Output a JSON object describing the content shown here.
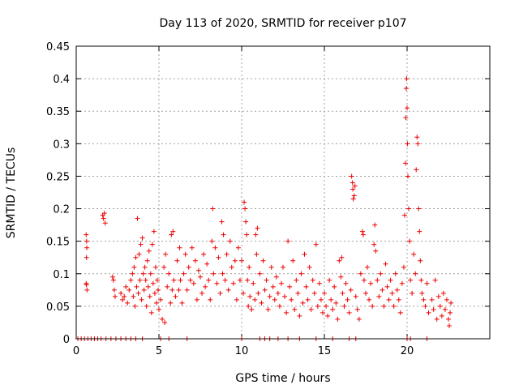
{
  "chart_data": {
    "type": "scatter",
    "title": "Day 113 of 2020, SRMTID for receiver p107",
    "xlabel": "GPS time / hours",
    "ylabel": "SRMTID / TECUs",
    "xlim": [
      0,
      25
    ],
    "ylim": [
      0,
      0.45
    ],
    "x_ticks": [
      0,
      5,
      10,
      15,
      20
    ],
    "x_tick_labels": [
      "0",
      "5",
      "10",
      "15",
      "20"
    ],
    "y_ticks": [
      0,
      0.05,
      0.1,
      0.15,
      0.2,
      0.25,
      0.3,
      0.35,
      0.4,
      0.45
    ],
    "y_tick_labels": [
      "0",
      "0.05",
      "0.1",
      "0.15",
      "0.2",
      "0.25",
      "0.3",
      "0.35",
      "0.4",
      "0.45"
    ],
    "grid": true,
    "marker": "plus",
    "color": "#ee0000",
    "series": [
      {
        "name": "SRMTID",
        "points": [
          [
            0.1,
            0
          ],
          [
            0.3,
            0
          ],
          [
            0.5,
            0
          ],
          [
            0.7,
            0
          ],
          [
            0.9,
            0
          ],
          [
            1.1,
            0
          ],
          [
            1.3,
            0
          ],
          [
            1.5,
            0
          ],
          [
            1.8,
            0
          ],
          [
            2.1,
            0
          ],
          [
            2.4,
            0
          ],
          [
            2.7,
            0
          ],
          [
            3.0,
            0
          ],
          [
            3.3,
            0
          ],
          [
            3.6,
            0
          ],
          [
            4.0,
            0
          ],
          [
            5.1,
            0
          ],
          [
            5.6,
            0
          ],
          [
            6.7,
            0
          ],
          [
            10.0,
            0
          ],
          [
            11.1,
            0
          ],
          [
            11.4,
            0
          ],
          [
            11.7,
            0
          ],
          [
            12.2,
            0
          ],
          [
            12.8,
            0
          ],
          [
            13.5,
            0
          ],
          [
            14.5,
            0
          ],
          [
            15.5,
            0
          ],
          [
            16.5,
            0
          ],
          [
            16.9,
            0
          ],
          [
            20.0,
            0
          ],
          [
            20.2,
            0
          ],
          [
            21.2,
            0
          ],
          [
            0.6,
            0.085
          ],
          [
            0.62,
            0.083
          ],
          [
            0.6,
            0.16
          ],
          [
            0.63,
            0.15
          ],
          [
            0.62,
            0.125
          ],
          [
            0.65,
            0.075
          ],
          [
            0.64,
            0.14
          ],
          [
            1.6,
            0.19
          ],
          [
            1.65,
            0.185
          ],
          [
            1.7,
            0.193
          ],
          [
            1.75,
            0.178
          ],
          [
            2.2,
            0.095
          ],
          [
            2.25,
            0.09
          ],
          [
            2.3,
            0.075
          ],
          [
            2.35,
            0.065
          ],
          [
            2.7,
            0.07
          ],
          [
            2.8,
            0.06
          ],
          [
            2.9,
            0.065
          ],
          [
            3.0,
            0.08
          ],
          [
            3.1,
            0.055
          ],
          [
            3.2,
            0.075
          ],
          [
            3.3,
            0.09
          ],
          [
            3.4,
            0.1
          ],
          [
            3.45,
            0.065
          ],
          [
            3.5,
            0.11
          ],
          [
            3.55,
            0.05
          ],
          [
            3.6,
            0.125
          ],
          [
            3.65,
            0.08
          ],
          [
            3.7,
            0.185
          ],
          [
            3.75,
            0.07
          ],
          [
            3.8,
            0.13
          ],
          [
            3.85,
            0.09
          ],
          [
            3.9,
            0.145
          ],
          [
            3.95,
            0.06
          ],
          [
            4.0,
            0.155
          ],
          [
            4.05,
            0.1
          ],
          [
            4.1,
            0.075
          ],
          [
            4.15,
            0.11
          ],
          [
            4.2,
            0.09
          ],
          [
            4.25,
            0.05
          ],
          [
            4.3,
            0.12
          ],
          [
            4.35,
            0.08
          ],
          [
            4.4,
            0.135
          ],
          [
            4.45,
            0.065
          ],
          [
            4.5,
            0.1
          ],
          [
            4.55,
            0.04
          ],
          [
            4.6,
            0.145
          ],
          [
            4.65,
            0.085
          ],
          [
            4.7,
            0.165
          ],
          [
            4.75,
            0.07
          ],
          [
            4.8,
            0.11
          ],
          [
            4.85,
            0.055
          ],
          [
            4.9,
            0.09
          ],
          [
            4.95,
            0.075
          ],
          [
            5.0,
            0.045
          ],
          [
            5.1,
            0.06
          ],
          [
            5.2,
            0.03
          ],
          [
            5.3,
            0.11
          ],
          [
            5.35,
            0.025
          ],
          [
            5.4,
            0.13
          ],
          [
            5.5,
            0.08
          ],
          [
            5.6,
            0.1
          ],
          [
            5.7,
            0.055
          ],
          [
            5.75,
            0.16
          ],
          [
            5.8,
            0.075
          ],
          [
            5.85,
            0.165
          ],
          [
            5.9,
            0.09
          ],
          [
            6.0,
            0.065
          ],
          [
            6.1,
            0.12
          ],
          [
            6.2,
            0.075
          ],
          [
            6.25,
            0.14
          ],
          [
            6.3,
            0.09
          ],
          [
            6.4,
            0.055
          ],
          [
            6.5,
            0.1
          ],
          [
            6.6,
            0.13
          ],
          [
            6.7,
            0.075
          ],
          [
            6.8,
            0.11
          ],
          [
            6.9,
            0.09
          ],
          [
            7.0,
            0.14
          ],
          [
            7.1,
            0.085
          ],
          [
            7.2,
            0.12
          ],
          [
            7.3,
            0.06
          ],
          [
            7.4,
            0.105
          ],
          [
            7.5,
            0.095
          ],
          [
            7.6,
            0.07
          ],
          [
            7.7,
            0.13
          ],
          [
            7.8,
            0.08
          ],
          [
            7.9,
            0.115
          ],
          [
            8.0,
            0.09
          ],
          [
            8.1,
            0.06
          ],
          [
            8.2,
            0.15
          ],
          [
            8.25,
            0.2
          ],
          [
            8.3,
            0.1
          ],
          [
            8.4,
            0.14
          ],
          [
            8.5,
            0.085
          ],
          [
            8.6,
            0.125
          ],
          [
            8.7,
            0.07
          ],
          [
            8.8,
            0.18
          ],
          [
            8.85,
            0.1
          ],
          [
            8.9,
            0.16
          ],
          [
            9.0,
            0.09
          ],
          [
            9.1,
            0.13
          ],
          [
            9.2,
            0.075
          ],
          [
            9.3,
            0.15
          ],
          [
            9.4,
            0.11
          ],
          [
            9.5,
            0.085
          ],
          [
            9.6,
            0.12
          ],
          [
            9.7,
            0.06
          ],
          [
            9.8,
            0.14
          ],
          [
            9.9,
            0.09
          ],
          [
            10.0,
            0.12
          ],
          [
            10.1,
            0.07
          ],
          [
            10.15,
            0.21
          ],
          [
            10.2,
            0.2
          ],
          [
            10.25,
            0.18
          ],
          [
            10.3,
            0.16
          ],
          [
            10.35,
            0.09
          ],
          [
            10.4,
            0.05
          ],
          [
            10.45,
            0.11
          ],
          [
            10.5,
            0.065
          ],
          [
            10.6,
            0.045
          ],
          [
            10.7,
            0.085
          ],
          [
            10.8,
            0.06
          ],
          [
            10.85,
            0.16
          ],
          [
            10.9,
            0.13
          ],
          [
            10.95,
            0.17
          ],
          [
            11.0,
            0.07
          ],
          [
            11.1,
            0.1
          ],
          [
            11.2,
            0.055
          ],
          [
            11.3,
            0.12
          ],
          [
            11.4,
            0.075
          ],
          [
            11.5,
            0.09
          ],
          [
            11.6,
            0.045
          ],
          [
            11.7,
            0.065
          ],
          [
            11.8,
            0.11
          ],
          [
            11.9,
            0.08
          ],
          [
            12.0,
            0.06
          ],
          [
            12.1,
            0.095
          ],
          [
            12.2,
            0.07
          ],
          [
            12.3,
            0.05
          ],
          [
            12.4,
            0.085
          ],
          [
            12.5,
            0.11
          ],
          [
            12.6,
            0.065
          ],
          [
            12.7,
            0.04
          ],
          [
            12.8,
            0.15
          ],
          [
            12.9,
            0.08
          ],
          [
            13.0,
            0.06
          ],
          [
            13.1,
            0.12
          ],
          [
            13.2,
            0.045
          ],
          [
            13.3,
            0.09
          ],
          [
            13.4,
            0.07
          ],
          [
            13.5,
            0.035
          ],
          [
            13.6,
            0.1
          ],
          [
            13.7,
            0.055
          ],
          [
            13.8,
            0.13
          ],
          [
            13.9,
            0.08
          ],
          [
            14.0,
            0.06
          ],
          [
            14.1,
            0.11
          ],
          [
            14.2,
            0.045
          ],
          [
            14.3,
            0.09
          ],
          [
            14.4,
            0.07
          ],
          [
            14.5,
            0.145
          ],
          [
            14.6,
            0.05
          ],
          [
            14.7,
            0.085
          ],
          [
            14.8,
            0.06
          ],
          [
            14.9,
            0.04
          ],
          [
            15.0,
            0.07
          ],
          [
            15.1,
            0.05
          ],
          [
            15.2,
            0.035
          ],
          [
            15.3,
            0.09
          ],
          [
            15.4,
            0.06
          ],
          [
            15.5,
            0.045
          ],
          [
            15.6,
            0.08
          ],
          [
            15.7,
            0.055
          ],
          [
            15.8,
            0.03
          ],
          [
            15.9,
            0.12
          ],
          [
            16.0,
            0.095
          ],
          [
            16.05,
            0.125
          ],
          [
            16.1,
            0.07
          ],
          [
            16.2,
            0.05
          ],
          [
            16.3,
            0.085
          ],
          [
            16.4,
            0.06
          ],
          [
            16.5,
            0.04
          ],
          [
            16.6,
            0.075
          ],
          [
            16.65,
            0.25
          ],
          [
            16.7,
            0.24
          ],
          [
            16.72,
            0.23
          ],
          [
            16.75,
            0.215
          ],
          [
            16.8,
            0.22
          ],
          [
            16.85,
            0.235
          ],
          [
            16.9,
            0.065
          ],
          [
            17.0,
            0.045
          ],
          [
            17.1,
            0.03
          ],
          [
            17.2,
            0.1
          ],
          [
            17.3,
            0.165
          ],
          [
            17.35,
            0.16
          ],
          [
            17.4,
            0.09
          ],
          [
            17.5,
            0.07
          ],
          [
            17.6,
            0.11
          ],
          [
            17.7,
            0.06
          ],
          [
            17.8,
            0.085
          ],
          [
            17.9,
            0.05
          ],
          [
            18.0,
            0.145
          ],
          [
            18.05,
            0.175
          ],
          [
            18.1,
            0.135
          ],
          [
            18.2,
            0.09
          ],
          [
            18.3,
            0.065
          ],
          [
            18.4,
            0.1
          ],
          [
            18.5,
            0.075
          ],
          [
            18.6,
            0.05
          ],
          [
            18.7,
            0.115
          ],
          [
            18.8,
            0.08
          ],
          [
            18.9,
            0.06
          ],
          [
            19.0,
            0.09
          ],
          [
            19.1,
            0.07
          ],
          [
            19.2,
            0.05
          ],
          [
            19.3,
            0.1
          ],
          [
            19.4,
            0.075
          ],
          [
            19.5,
            0.06
          ],
          [
            19.6,
            0.04
          ],
          [
            19.7,
            0.085
          ],
          [
            19.8,
            0.11
          ],
          [
            19.85,
            0.19
          ],
          [
            19.9,
            0.27
          ],
          [
            19.92,
            0.34
          ],
          [
            19.95,
            0.385
          ],
          [
            19.97,
            0.4
          ],
          [
            20.0,
            0.355
          ],
          [
            20.02,
            0.3
          ],
          [
            20.05,
            0.25
          ],
          [
            20.1,
            0.2
          ],
          [
            20.15,
            0.15
          ],
          [
            20.2,
            0.09
          ],
          [
            20.3,
            0.07
          ],
          [
            20.4,
            0.13
          ],
          [
            20.5,
            0.1
          ],
          [
            20.55,
            0.26
          ],
          [
            20.6,
            0.31
          ],
          [
            20.65,
            0.3
          ],
          [
            20.7,
            0.2
          ],
          [
            20.75,
            0.165
          ],
          [
            20.8,
            0.12
          ],
          [
            20.85,
            0.09
          ],
          [
            20.9,
            0.07
          ],
          [
            21.0,
            0.06
          ],
          [
            21.1,
            0.05
          ],
          [
            21.2,
            0.085
          ],
          [
            21.3,
            0.04
          ],
          [
            21.5,
            0.06
          ],
          [
            21.6,
            0.045
          ],
          [
            21.7,
            0.09
          ],
          [
            21.8,
            0.03
          ],
          [
            21.9,
            0.065
          ],
          [
            22.0,
            0.05
          ],
          [
            22.1,
            0.035
          ],
          [
            22.2,
            0.07
          ],
          [
            22.3,
            0.045
          ],
          [
            22.4,
            0.06
          ],
          [
            22.5,
            0.03
          ],
          [
            22.55,
            0.02
          ],
          [
            22.6,
            0.04
          ],
          [
            22.65,
            0.055
          ]
        ]
      }
    ]
  }
}
